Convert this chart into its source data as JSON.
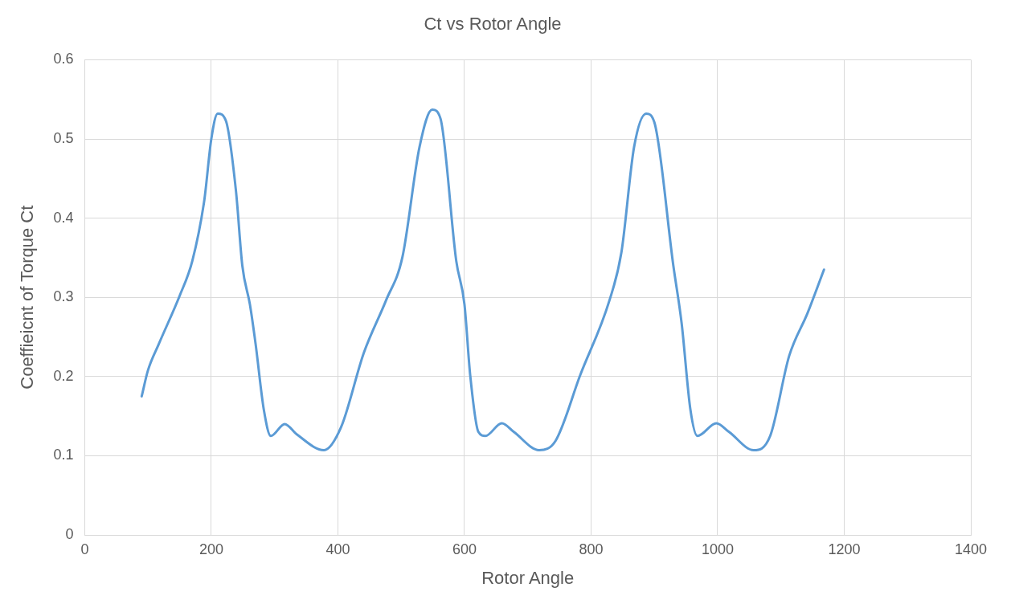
{
  "chart_data": {
    "type": "line",
    "title": "Ct vs Rotor Angle",
    "xlabel": "Rotor Angle",
    "ylabel": "Coeffieicnt of Torque Ct",
    "xlim": [
      0,
      1400
    ],
    "xticks": [
      0,
      200,
      400,
      600,
      800,
      1000,
      1200,
      1400
    ],
    "ylim": [
      0,
      0.6
    ],
    "yticks": [
      0,
      0.1,
      0.2,
      0.3,
      0.4,
      0.5,
      0.6
    ],
    "grid": true,
    "marker": "none",
    "line_style": "solid",
    "series": [
      {
        "color": "#5b9bd5",
        "x": [
          90,
          100,
          117,
          150,
          170,
          189,
          200,
          210,
          223,
          239,
          249,
          261,
          270,
          283,
          294,
          316,
          335,
          378,
          405,
          441,
          476,
          502,
          529,
          549,
          562,
          587,
          600,
          609,
          622,
          633,
          659,
          678,
          718,
          744,
          783,
          829,
          848,
          868,
          887,
          900,
          930,
          943,
          957,
          968,
          998,
          1018,
          1057,
          1083,
          1113,
          1142,
          1168
        ],
        "values": [
          0.175,
          0.208,
          0.241,
          0.302,
          0.346,
          0.423,
          0.5,
          0.532,
          0.523,
          0.434,
          0.34,
          0.291,
          0.241,
          0.158,
          0.125,
          0.14,
          0.127,
          0.107,
          0.136,
          0.23,
          0.296,
          0.351,
          0.49,
          0.537,
          0.526,
          0.346,
          0.291,
          0.202,
          0.13,
          0.125,
          0.141,
          0.13,
          0.107,
          0.119,
          0.202,
          0.296,
          0.357,
          0.49,
          0.532,
          0.521,
          0.34,
          0.268,
          0.158,
          0.125,
          0.141,
          0.13,
          0.107,
          0.125,
          0.226,
          0.28,
          0.335
        ]
      }
    ]
  }
}
